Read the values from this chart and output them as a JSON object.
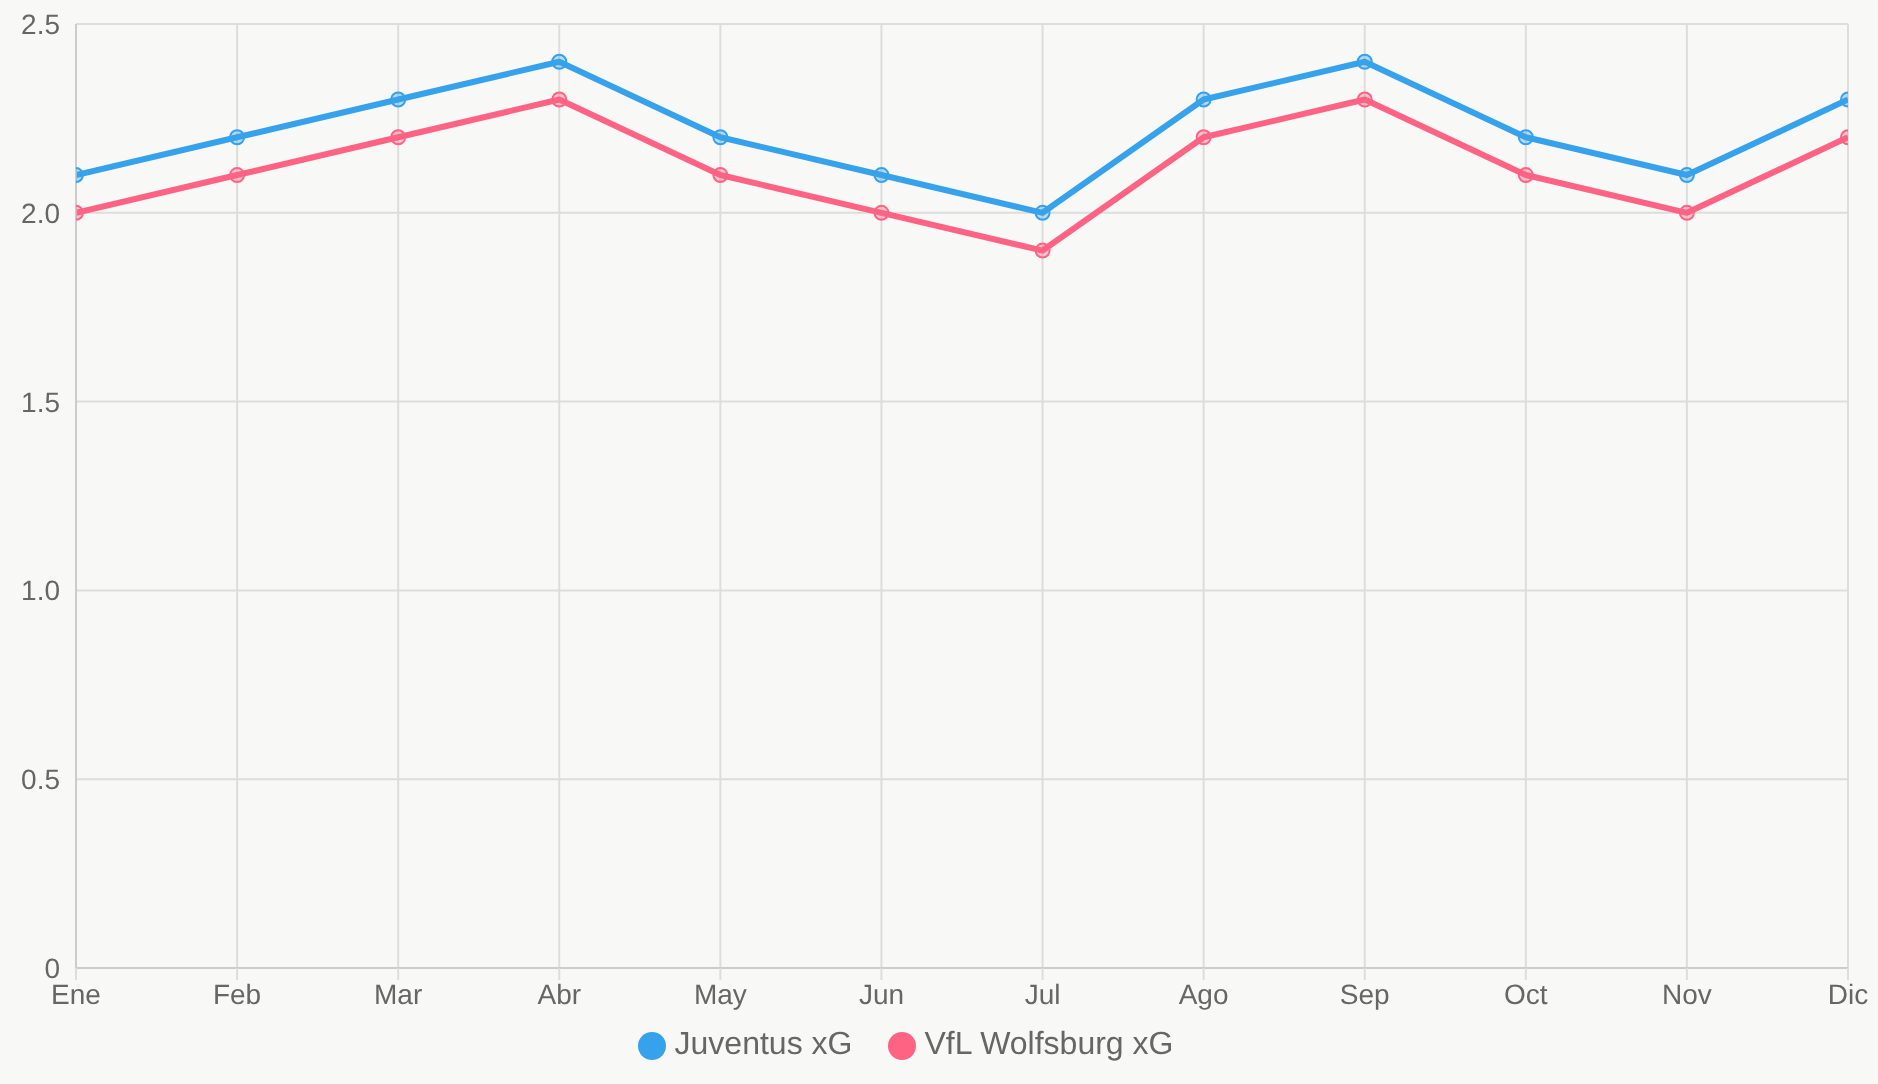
{
  "chart_data": {
    "type": "line",
    "categories": [
      "Ene",
      "Feb",
      "Mar",
      "Abr",
      "May",
      "Jun",
      "Jul",
      "Ago",
      "Sep",
      "Oct",
      "Nov",
      "Dic"
    ],
    "series": [
      {
        "name": "VfL Wolfsburg xG",
        "color": "#ff6384",
        "values": [
          2.0,
          2.1,
          2.2,
          2.3,
          2.1,
          2.0,
          1.9,
          2.2,
          2.3,
          2.1,
          2.0,
          2.2
        ]
      },
      {
        "name": "Juventus xG",
        "color": "#36a2eb",
        "values": [
          2.1,
          2.2,
          2.3,
          2.4,
          2.2,
          2.1,
          2.0,
          2.3,
          2.4,
          2.2,
          2.1,
          2.3
        ]
      }
    ],
    "ylim": [
      0,
      2.5
    ],
    "yticks": [
      0,
      0.5,
      {
        "value": 1,
        "label": "1.0"
      },
      1.5,
      {
        "value": 2,
        "label": "2.0"
      },
      2.5
    ],
    "grid": true,
    "legend": "bottom",
    "marker": "circle",
    "line_style": "solid"
  }
}
